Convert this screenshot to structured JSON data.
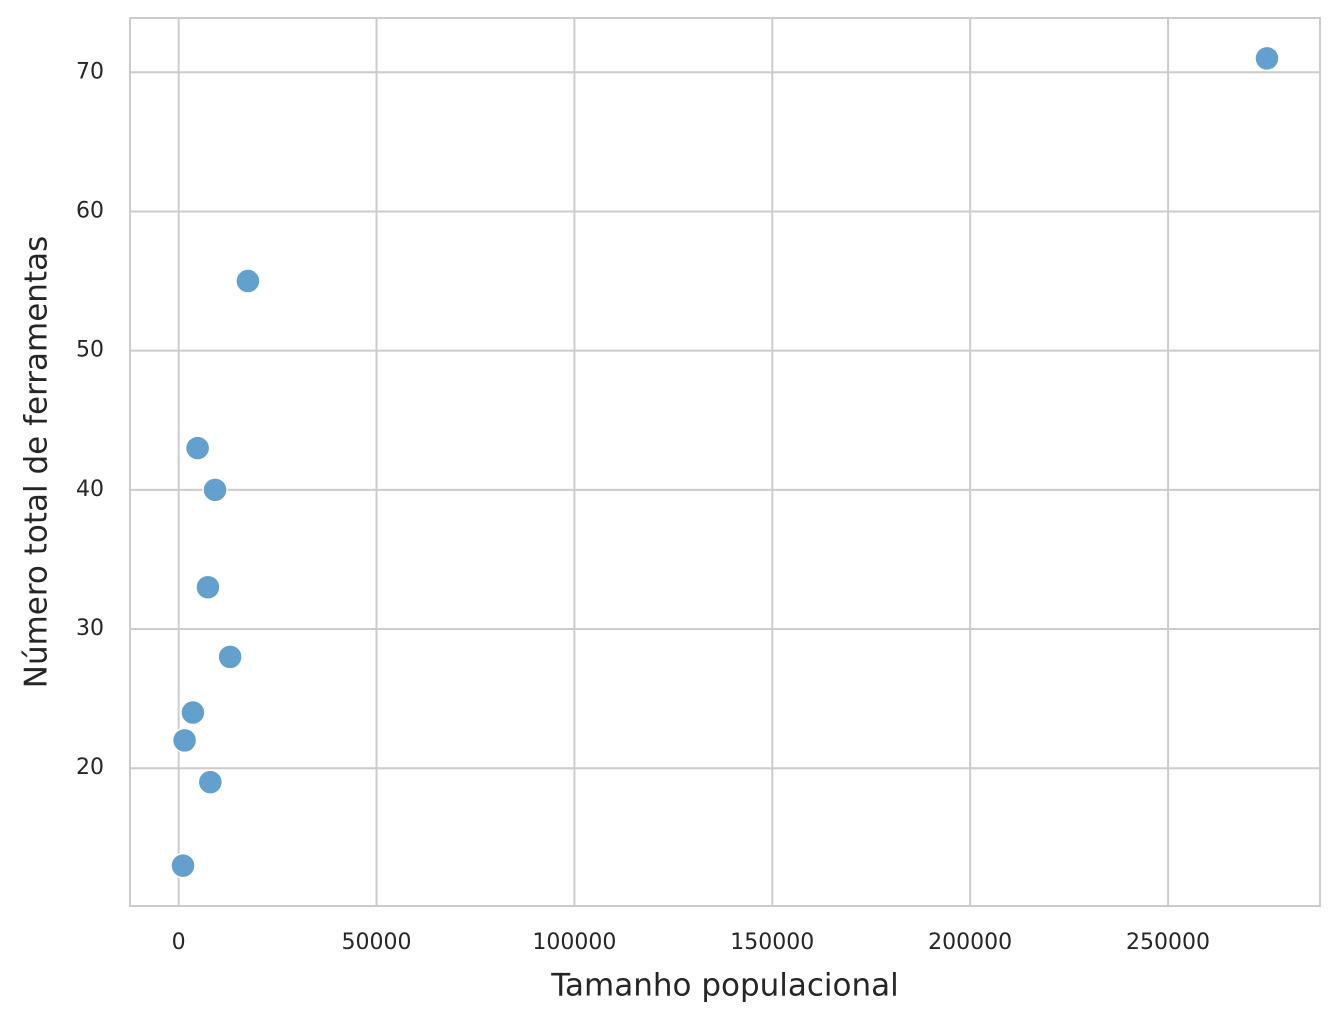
{
  "chart_data": {
    "type": "scatter",
    "xlabel": "Tamanho populacional",
    "ylabel": "Número total de ferramentas",
    "x": [
      1100,
      1500,
      3600,
      4791,
      7400,
      8000,
      9200,
      13000,
      17500,
      275000
    ],
    "y": [
      13,
      22,
      24,
      43,
      33,
      19,
      40,
      28,
      55,
      71
    ],
    "color": "#5b9bca",
    "xlim": [
      -12295,
      288395
    ],
    "ylim": [
      10.1,
      73.9
    ],
    "xticks": [
      0,
      50000,
      100000,
      150000,
      200000,
      250000
    ],
    "yticks": [
      20,
      30,
      40,
      50,
      60,
      70
    ],
    "grid": true
  }
}
